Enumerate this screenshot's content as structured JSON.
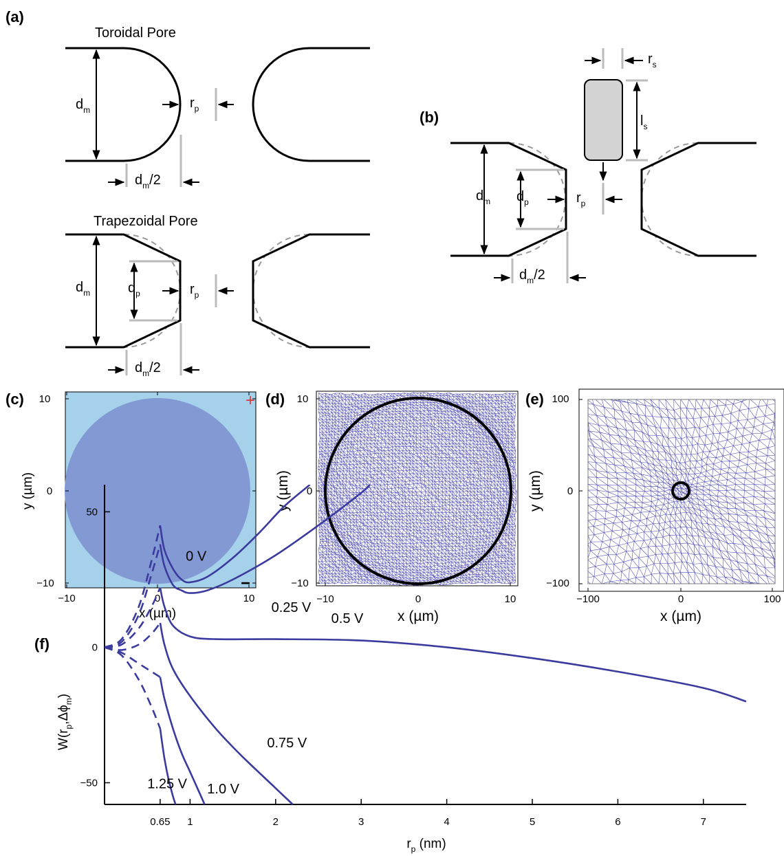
{
  "panel_labels": {
    "a": "(a)",
    "b": "(b)",
    "c": "(c)",
    "d": "(d)",
    "e": "(e)",
    "f": "(f)"
  },
  "panel_a": {
    "toroidal_title": "Toroidal Pore",
    "trapezoidal_title": "Trapezoidal Pore",
    "labels": {
      "d": "d",
      "m": "m",
      "r": "r",
      "p": "p",
      "half": "/2"
    }
  },
  "panel_b": {
    "labels": {
      "r": "r",
      "s": "s",
      "l": "l",
      "d": "d",
      "m": "m",
      "p": "p",
      "half": "/2"
    }
  },
  "panel_c": {
    "xlabel": "x (µm)",
    "ylabel": "y (µm)",
    "xticks": [
      "−10",
      "0",
      "10"
    ],
    "yticks": [
      "10",
      "0",
      "−10"
    ],
    "plus_sign": "+",
    "minus_sign": "−",
    "colors": {
      "background": "#a6d1ea",
      "disk": "#8299d3",
      "plus": "#d93838"
    }
  },
  "panel_d": {
    "xlabel": "x (µm)",
    "ylabel": "y (µm)",
    "xticks": [
      "−10",
      "0",
      "10"
    ],
    "yticks": [
      "10",
      "0",
      "−10"
    ],
    "colors": {
      "mesh": "#4a47b4"
    }
  },
  "panel_e": {
    "xlabel": "x (µm)",
    "ylabel": "y (µm)",
    "xticks": [
      "−100",
      "0",
      "100"
    ],
    "yticks": [
      "100",
      "0",
      "−100"
    ],
    "colors": {
      "mesh": "#4a47b4"
    }
  },
  "chart_data": {
    "type": "line",
    "xlabel_main": "r",
    "xlabel_sub": "p",
    "xlabel_tail": " (nm)",
    "ylabel_main": "W(r",
    "ylabel_sub1": "p",
    "ylabel_mid": ",Δϕ",
    "ylabel_sub2": "m",
    "ylabel_tail": ")",
    "xlim": [
      0.0,
      7.5
    ],
    "ylim": [
      -58,
      60
    ],
    "xticks": [
      0.65,
      1,
      2,
      3,
      4,
      5,
      6,
      7
    ],
    "xtick_labels": [
      "0.65",
      "1",
      "2",
      "3",
      "4",
      "5",
      "6",
      "7"
    ],
    "yticks": [
      50,
      0,
      -50
    ],
    "ytick_labels": [
      "50",
      "0",
      "−50"
    ],
    "series": [
      {
        "name": "0 V",
        "dashed_x": [
          0.0,
          0.2,
          0.4,
          0.55,
          0.65
        ],
        "dashed_y": [
          0,
          3,
          15,
          32,
          45
        ],
        "x": [
          0.65,
          0.7,
          0.8,
          0.9,
          1.0,
          1.2,
          1.5,
          1.8,
          2.1,
          2.4
        ],
        "y": [
          45,
          36,
          29,
          25,
          24,
          26,
          33,
          42,
          52,
          60
        ]
      },
      {
        "name": "0.25 V",
        "dashed_x": [
          0.0,
          0.2,
          0.4,
          0.55,
          0.65
        ],
        "dashed_y": [
          0,
          2,
          12,
          27,
          38
        ],
        "x": [
          0.65,
          0.7,
          0.8,
          0.9,
          1.0,
          1.2,
          1.5,
          2.0,
          2.5,
          3.0,
          3.1
        ],
        "y": [
          38,
          30,
          23,
          21,
          20,
          21,
          25,
          34,
          45,
          57,
          60
        ]
      },
      {
        "name": "0.5 V",
        "dashed_x": [
          0.0,
          0.2,
          0.4,
          0.55,
          0.65
        ],
        "dashed_y": [
          0,
          1,
          7,
          15,
          22
        ],
        "x": [
          0.65,
          0.7,
          0.8,
          1.0,
          1.3,
          2.0,
          3.0,
          4.0,
          5.0,
          6.0,
          7.0,
          7.5
        ],
        "y": [
          22,
          15,
          8,
          4,
          3,
          3,
          2.5,
          0,
          -4,
          -9,
          -15,
          -20
        ]
      },
      {
        "name": "0.75 V",
        "dashed_x": [
          0.0,
          0.2,
          0.4,
          0.55,
          0.65
        ],
        "dashed_y": [
          0,
          -1,
          1,
          5,
          9
        ],
        "x": [
          0.65,
          0.7,
          0.8,
          1.0,
          1.3,
          1.6,
          2.0,
          2.2
        ],
        "y": [
          9,
          1,
          -8,
          -18,
          -30,
          -40,
          -52,
          -58
        ]
      },
      {
        "name": "1.0 V",
        "dashed_x": [
          0.0,
          0.2,
          0.4,
          0.55,
          0.65
        ],
        "dashed_y": [
          0,
          -2,
          -6,
          -9,
          -11
        ],
        "x": [
          0.65,
          0.7,
          0.8,
          0.9,
          1.0,
          1.1,
          1.17
        ],
        "y": [
          -11,
          -19,
          -30,
          -39,
          -46,
          -53,
          -58
        ]
      },
      {
        "name": "1.25 V",
        "dashed_x": [
          0.0,
          0.2,
          0.4,
          0.55,
          0.65
        ],
        "dashed_y": [
          0,
          -3,
          -12,
          -22,
          -30
        ],
        "x": [
          0.65,
          0.7,
          0.75,
          0.8,
          0.83
        ],
        "y": [
          -30,
          -41,
          -49,
          -55,
          -58
        ]
      }
    ],
    "annotations": [
      {
        "text": "0 V",
        "x": 0.95,
        "y": 32
      },
      {
        "text": "0.25 V",
        "x": 1.95,
        "y": 13
      },
      {
        "text": "0.5 V",
        "x": 2.65,
        "y": 9
      },
      {
        "text": "0.75 V",
        "x": 1.9,
        "y": -37
      },
      {
        "text": "1.0 V",
        "x": 1.2,
        "y": -54
      },
      {
        "text": "1.25 V",
        "x": 0.5,
        "y": -52
      }
    ]
  }
}
